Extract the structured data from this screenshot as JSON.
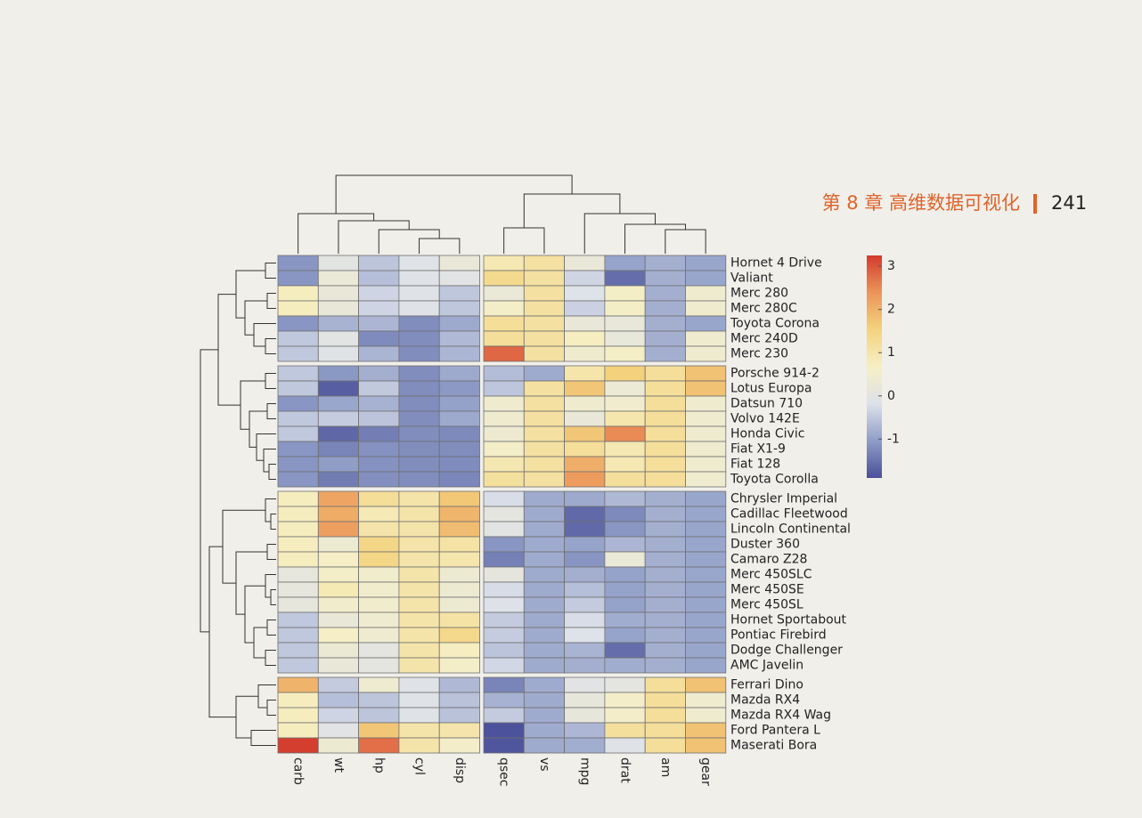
{
  "header": {
    "chapter": "第 8 章  高维数据可视化",
    "page": "241"
  },
  "chart_data": {
    "type": "heatmap",
    "columns": [
      "carb",
      "wt",
      "hp",
      "cyl",
      "disp",
      "qsec",
      "vs",
      "mpg",
      "drat",
      "am",
      "gear"
    ],
    "rows": [
      "Hornet 4 Drive",
      "Valiant",
      "Merc 280",
      "Merc 280C",
      "Toyota Corona",
      "Merc 240D",
      "Merc 230",
      "Porsche 914-2",
      "Lotus Europa",
      "Datsun 710",
      "Volvo 142E",
      "Honda Civic",
      "Fiat X1-9",
      "Fiat 128",
      "Toyota Corolla",
      "Chrysler Imperial",
      "Cadillac Fleetwood",
      "Lincoln Continental",
      "Duster 360",
      "Camaro Z28",
      "Merc 450SLC",
      "Merc 450SE",
      "Merc 450SL",
      "Hornet Sportabout",
      "Pontiac Firebird",
      "Dodge Challenger",
      "AMC Javelin",
      "Ferrari Dino",
      "Mazda RX4",
      "Mazda RX4 Wag",
      "Ford Pantera L",
      "Maserati Bora"
    ],
    "values": [
      [
        -1.12,
        0.0,
        -0.54,
        -0.1,
        0.22,
        0.89,
        1.12,
        0.22,
        -0.97,
        -0.81,
        -0.93
      ],
      [
        -1.12,
        0.25,
        -0.61,
        -0.1,
        -0.05,
        1.33,
        1.12,
        -0.33,
        -1.56,
        -0.81,
        -0.93
      ],
      [
        0.74,
        0.23,
        -0.35,
        -0.1,
        -0.51,
        0.25,
        1.12,
        -0.15,
        0.6,
        -0.81,
        0.42
      ],
      [
        0.74,
        0.23,
        -0.35,
        -0.1,
        -0.51,
        0.59,
        1.12,
        -0.38,
        0.6,
        -0.81,
        0.42
      ],
      [
        -1.12,
        -0.77,
        -0.72,
        -1.22,
        -0.89,
        1.21,
        1.12,
        0.23,
        0.19,
        -0.81,
        -0.93
      ],
      [
        -0.5,
        -0.03,
        -1.24,
        -1.22,
        -0.68,
        1.2,
        1.12,
        0.72,
        0.17,
        -0.81,
        0.42
      ],
      [
        -0.5,
        -0.07,
        -0.75,
        -1.22,
        -0.73,
        2.83,
        1.12,
        0.45,
        0.6,
        -0.81,
        0.42
      ],
      [
        -0.5,
        -1.1,
        -0.81,
        -1.22,
        -0.89,
        -0.64,
        -0.87,
        0.98,
        1.56,
        1.19,
        1.78
      ],
      [
        -0.5,
        -1.74,
        -0.49,
        -1.22,
        -1.09,
        -0.53,
        1.12,
        1.71,
        0.32,
        1.19,
        1.78
      ],
      [
        -1.12,
        -0.92,
        -0.78,
        -1.22,
        -0.99,
        0.43,
        1.12,
        0.45,
        0.47,
        1.19,
        0.42
      ],
      [
        -0.5,
        -0.45,
        -0.55,
        -1.22,
        -0.89,
        0.42,
        1.12,
        0.22,
        0.96,
        1.19,
        0.42
      ],
      [
        -0.5,
        -1.64,
        -1.38,
        -1.22,
        -1.25,
        0.38,
        1.12,
        1.71,
        2.49,
        1.19,
        0.42
      ],
      [
        -1.12,
        -1.31,
        -1.17,
        -1.22,
        -1.22,
        0.59,
        1.12,
        1.2,
        0.9,
        1.19,
        0.42
      ],
      [
        -1.12,
        -1.04,
        -1.17,
        -1.22,
        -1.23,
        0.91,
        1.12,
        2.04,
        0.9,
        1.19,
        0.42
      ],
      [
        -1.12,
        -1.41,
        -1.19,
        -1.22,
        -1.29,
        1.15,
        1.12,
        2.29,
        1.17,
        1.19,
        0.42
      ],
      [
        0.74,
        2.17,
        1.21,
        1.01,
        1.69,
        -0.24,
        -0.87,
        -0.89,
        -0.69,
        -0.81,
        -0.93
      ],
      [
        0.74,
        2.08,
        0.85,
        1.01,
        1.95,
        0.07,
        -0.87,
        -1.61,
        -1.25,
        -0.81,
        -0.93
      ],
      [
        0.74,
        2.26,
        1.0,
        1.01,
        1.85,
        -0.02,
        -0.87,
        -1.61,
        -1.12,
        -0.81,
        -0.93
      ],
      [
        0.74,
        0.36,
        1.43,
        1.01,
        1.05,
        -1.12,
        -0.87,
        -0.96,
        -0.72,
        -0.81,
        -0.93
      ],
      [
        0.74,
        0.64,
        1.43,
        1.01,
        0.96,
        -1.36,
        -0.87,
        -1.13,
        0.25,
        -0.81,
        -0.93
      ],
      [
        0.12,
        0.58,
        0.49,
        1.01,
        0.36,
        0.08,
        -0.87,
        -0.81,
        -0.98,
        -0.81,
        -0.93
      ],
      [
        0.12,
        0.87,
        0.49,
        1.01,
        0.36,
        -0.25,
        -0.87,
        -0.61,
        -0.98,
        -0.81,
        -0.93
      ],
      [
        0.12,
        0.52,
        0.49,
        1.01,
        0.36,
        -0.14,
        -0.87,
        -0.46,
        -0.98,
        -0.81,
        -0.93
      ],
      [
        -0.5,
        0.23,
        0.41,
        1.01,
        1.04,
        -0.46,
        -0.87,
        -0.23,
        -0.84,
        -0.81,
        -0.93
      ],
      [
        -0.5,
        0.64,
        0.41,
        1.01,
        1.37,
        -0.45,
        -0.87,
        -0.15,
        -0.97,
        -0.81,
        -0.93
      ],
      [
        -0.5,
        0.31,
        0.05,
        1.01,
        0.7,
        -0.55,
        -0.87,
        -0.76,
        -1.56,
        -0.81,
        -0.93
      ],
      [
        -0.5,
        0.22,
        0.05,
        1.01,
        0.59,
        -0.31,
        -0.87,
        -0.81,
        -0.84,
        -0.81,
        -0.93
      ],
      [
        1.97,
        -0.46,
        0.41,
        -0.1,
        -0.69,
        -1.31,
        -0.87,
        -0.06,
        0.04,
        1.19,
        1.78
      ],
      [
        0.74,
        -0.61,
        -0.54,
        -0.1,
        -0.57,
        -0.78,
        -0.87,
        0.15,
        0.57,
        1.19,
        0.42
      ],
      [
        0.74,
        -0.35,
        -0.54,
        -0.1,
        -0.57,
        -0.46,
        -0.87,
        0.15,
        0.57,
        1.19,
        0.42
      ],
      [
        0.74,
        -0.05,
        1.71,
        1.01,
        0.97,
        -1.87,
        -0.87,
        -0.71,
        1.17,
        1.19,
        1.78
      ],
      [
        3.21,
        0.36,
        2.75,
        1.01,
        0.57,
        -1.82,
        -0.87,
        -0.84,
        -0.11,
        1.19,
        1.78
      ]
    ],
    "colors": [
      "#4a4f99",
      "#8f9dc7",
      "#dde1ea",
      "#f6efc4",
      "#f3d37e",
      "#ec955a",
      "#d33a2d"
    ],
    "clim": [
      -1.9,
      3.25
    ],
    "cticks": [
      -1,
      0,
      1,
      2,
      3
    ]
  }
}
